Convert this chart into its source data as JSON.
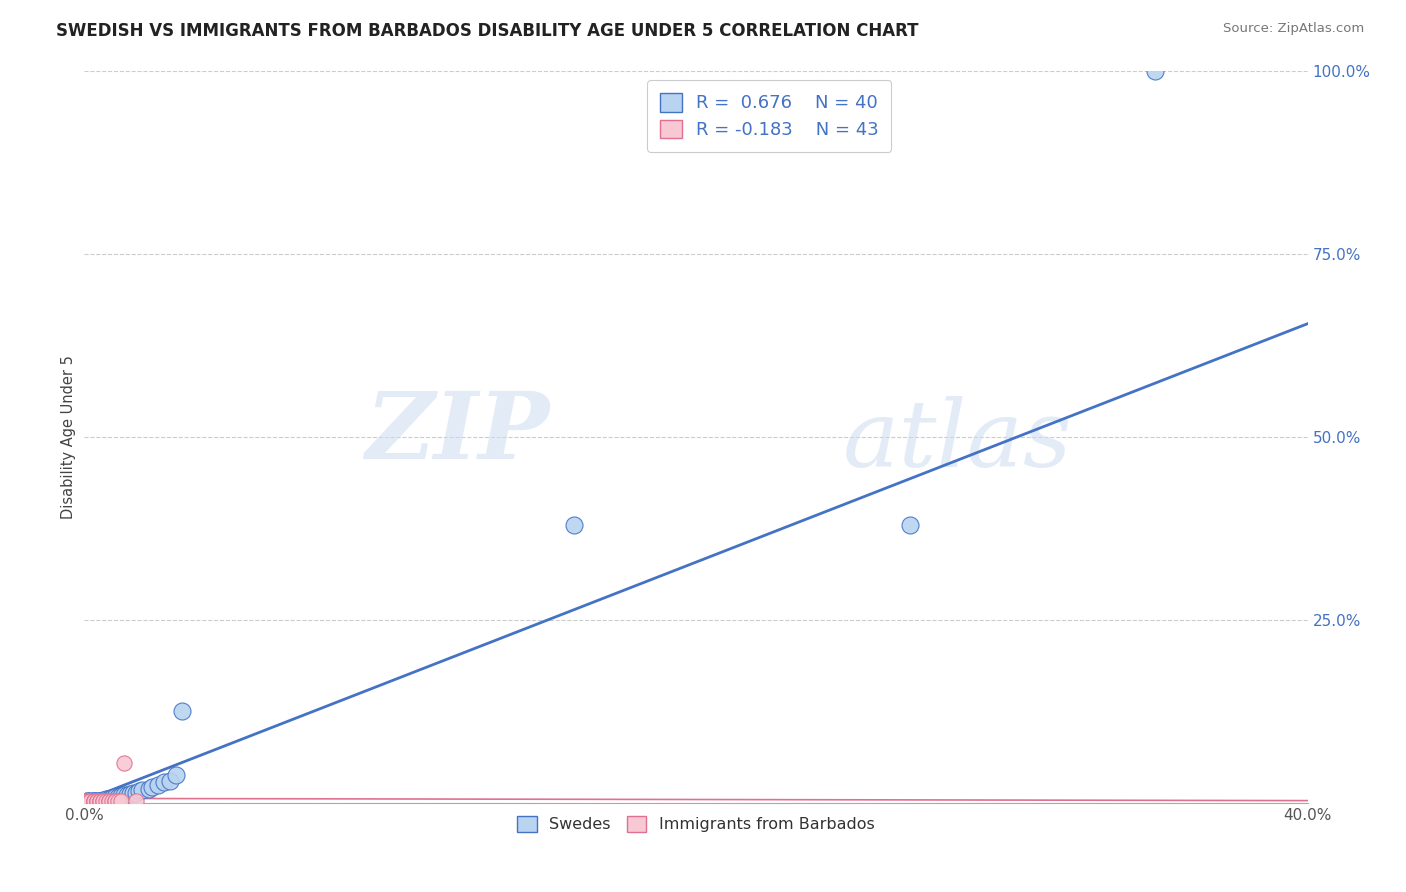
{
  "title": "SWEDISH VS IMMIGRANTS FROM BARBADOS DISABILITY AGE UNDER 5 CORRELATION CHART",
  "source": "Source: ZipAtlas.com",
  "legend_label1": "Swedes",
  "legend_label2": "Immigrants from Barbados",
  "r1": 0.676,
  "n1": 40,
  "r2": -0.183,
  "n2": 43,
  "blue_color": "#b8d4f0",
  "blue_dark": "#4472c4",
  "pink_color": "#f8c8d4",
  "pink_dark": "#e07090",
  "watermark_zip": "ZIP",
  "watermark_atlas": "atlas",
  "xmin": 0.0,
  "xmax": 0.4,
  "ymin": 0.0,
  "ymax": 1.0,
  "ytick_vals": [
    0.0,
    0.25,
    0.5,
    0.75,
    1.0
  ],
  "ytick_labels": [
    "",
    "25.0%",
    "50.0%",
    "75.0%",
    "100.0%"
  ],
  "xtick_vals": [
    0.0,
    0.4
  ],
  "xtick_labels": [
    "0.0%",
    "40.0%"
  ],
  "swedes_x": [
    0.001,
    0.001,
    0.002,
    0.002,
    0.003,
    0.003,
    0.003,
    0.004,
    0.004,
    0.005,
    0.005,
    0.005,
    0.006,
    0.006,
    0.007,
    0.007,
    0.008,
    0.008,
    0.009,
    0.01,
    0.01,
    0.011,
    0.012,
    0.013,
    0.014,
    0.015,
    0.016,
    0.017,
    0.018,
    0.019,
    0.021,
    0.022,
    0.024,
    0.026,
    0.028,
    0.03,
    0.032,
    0.16,
    0.27,
    0.35
  ],
  "swedes_y": [
    0.003,
    0.003,
    0.003,
    0.003,
    0.003,
    0.003,
    0.003,
    0.003,
    0.003,
    0.003,
    0.003,
    0.003,
    0.003,
    0.004,
    0.004,
    0.005,
    0.005,
    0.005,
    0.006,
    0.007,
    0.008,
    0.008,
    0.009,
    0.01,
    0.011,
    0.012,
    0.013,
    0.014,
    0.016,
    0.018,
    0.019,
    0.022,
    0.025,
    0.028,
    0.03,
    0.038,
    0.125,
    0.38,
    0.38,
    1.0
  ],
  "barbados_x": [
    0.0,
    0.0,
    0.0,
    0.0,
    0.0,
    0.0,
    0.0,
    0.0,
    0.0,
    0.0,
    0.0,
    0.001,
    0.001,
    0.001,
    0.001,
    0.001,
    0.001,
    0.002,
    0.002,
    0.002,
    0.002,
    0.003,
    0.003,
    0.003,
    0.003,
    0.004,
    0.004,
    0.004,
    0.005,
    0.005,
    0.005,
    0.006,
    0.006,
    0.007,
    0.008,
    0.008,
    0.009,
    0.01,
    0.01,
    0.011,
    0.012,
    0.013,
    0.017
  ],
  "barbados_y": [
    0.003,
    0.003,
    0.003,
    0.003,
    0.003,
    0.003,
    0.003,
    0.003,
    0.003,
    0.003,
    0.003,
    0.003,
    0.003,
    0.003,
    0.003,
    0.003,
    0.003,
    0.003,
    0.003,
    0.003,
    0.003,
    0.003,
    0.003,
    0.003,
    0.003,
    0.003,
    0.003,
    0.003,
    0.003,
    0.003,
    0.003,
    0.003,
    0.003,
    0.003,
    0.003,
    0.003,
    0.003,
    0.003,
    0.003,
    0.003,
    0.003,
    0.055,
    0.003
  ],
  "blue_line_x": [
    0.0,
    0.4
  ],
  "blue_line_y": [
    0.003,
    0.655
  ],
  "pink_line_x": [
    0.0,
    0.4
  ],
  "pink_line_y": [
    0.006,
    0.003
  ]
}
